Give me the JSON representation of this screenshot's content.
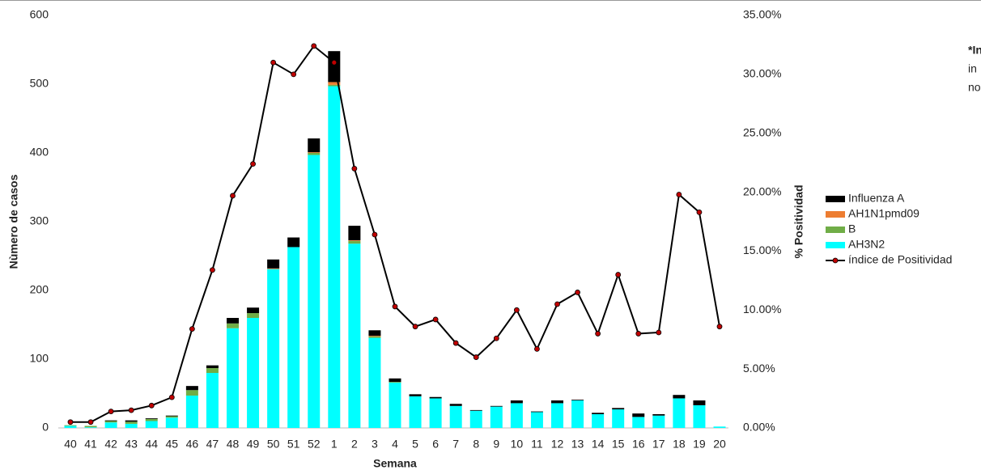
{
  "chart_data": {
    "type": "bar",
    "categories": [
      "40",
      "41",
      "42",
      "43",
      "44",
      "45",
      "46",
      "47",
      "48",
      "49",
      "50",
      "51",
      "52",
      "1",
      "2",
      "3",
      "4",
      "5",
      "6",
      "7",
      "8",
      "9",
      "10",
      "11",
      "12",
      "13",
      "14",
      "15",
      "16",
      "17",
      "18",
      "19",
      "20"
    ],
    "stacked": true,
    "series": [
      {
        "name": "AH3N2",
        "color": "#00FFFF",
        "values": [
          3,
          1,
          8,
          6,
          10,
          15,
          47,
          80,
          145,
          160,
          231,
          263,
          397,
          497,
          268,
          131,
          66,
          46,
          43,
          32,
          25,
          31,
          36,
          23,
          36,
          40,
          20,
          27,
          16,
          18,
          43,
          33,
          2
        ]
      },
      {
        "name": "B",
        "color": "#70AD47",
        "values": [
          1,
          2,
          2,
          3,
          3,
          2,
          8,
          7,
          7,
          7,
          0,
          0,
          3,
          2,
          4,
          2,
          1,
          0,
          0,
          0,
          0,
          0,
          0,
          0,
          0,
          0,
          0,
          0,
          0,
          0,
          0,
          0,
          0
        ]
      },
      {
        "name": "AH1N1pmd09",
        "color": "#ED7D31",
        "values": [
          0,
          0,
          0,
          0,
          0,
          0,
          0,
          0,
          0,
          0,
          1,
          0,
          1,
          4,
          1,
          1,
          0,
          0,
          0,
          0,
          0,
          0,
          0,
          0,
          0,
          0,
          0,
          0,
          0,
          0,
          0,
          0,
          0
        ]
      },
      {
        "name": "Influenza A",
        "color": "#000000",
        "values": [
          0,
          0,
          1,
          2,
          1,
          1,
          6,
          4,
          8,
          8,
          13,
          14,
          20,
          45,
          21,
          8,
          5,
          3,
          2,
          3,
          1,
          1,
          4,
          1,
          4,
          1,
          2,
          2,
          5,
          2,
          5,
          7,
          0
        ]
      },
      {
        "name": "índice de Positividad",
        "type": "line",
        "axis": "y2",
        "color": "#000000",
        "marker_color": "#C00000",
        "values": [
          0.5,
          0.5,
          1.4,
          1.5,
          1.9,
          2.6,
          8.4,
          13.4,
          19.7,
          22.4,
          31.0,
          30.0,
          32.4,
          31.0,
          22.0,
          16.4,
          10.3,
          8.6,
          9.2,
          7.2,
          6.0,
          7.6,
          10.0,
          6.7,
          10.5,
          11.5,
          8.0,
          13.0,
          8.0,
          8.1,
          19.8,
          18.3,
          8.6
        ]
      }
    ],
    "x_label": "Semana",
    "y_label": "Nùmero de casos",
    "y2_label": "% Positividad",
    "ylim": [
      0,
      600
    ],
    "yticks": [
      0,
      100,
      200,
      300,
      400,
      500,
      600
    ],
    "y2lim": [
      0,
      35
    ],
    "y2ticks": [
      {
        "value": 0,
        "label": "0.00%"
      },
      {
        "value": 5,
        "label": "5.00%"
      },
      {
        "value": 10,
        "label": "10.00%"
      },
      {
        "value": 15,
        "label": "15.00%"
      },
      {
        "value": 20,
        "label": "20.00%"
      },
      {
        "value": 25,
        "label": "25.00%"
      },
      {
        "value": 30,
        "label": "30.00%"
      },
      {
        "value": 35,
        "label": "35.00%"
      }
    ],
    "grid": false,
    "legend": "right",
    "annotation": [
      "*In",
      "in",
      "no"
    ]
  }
}
